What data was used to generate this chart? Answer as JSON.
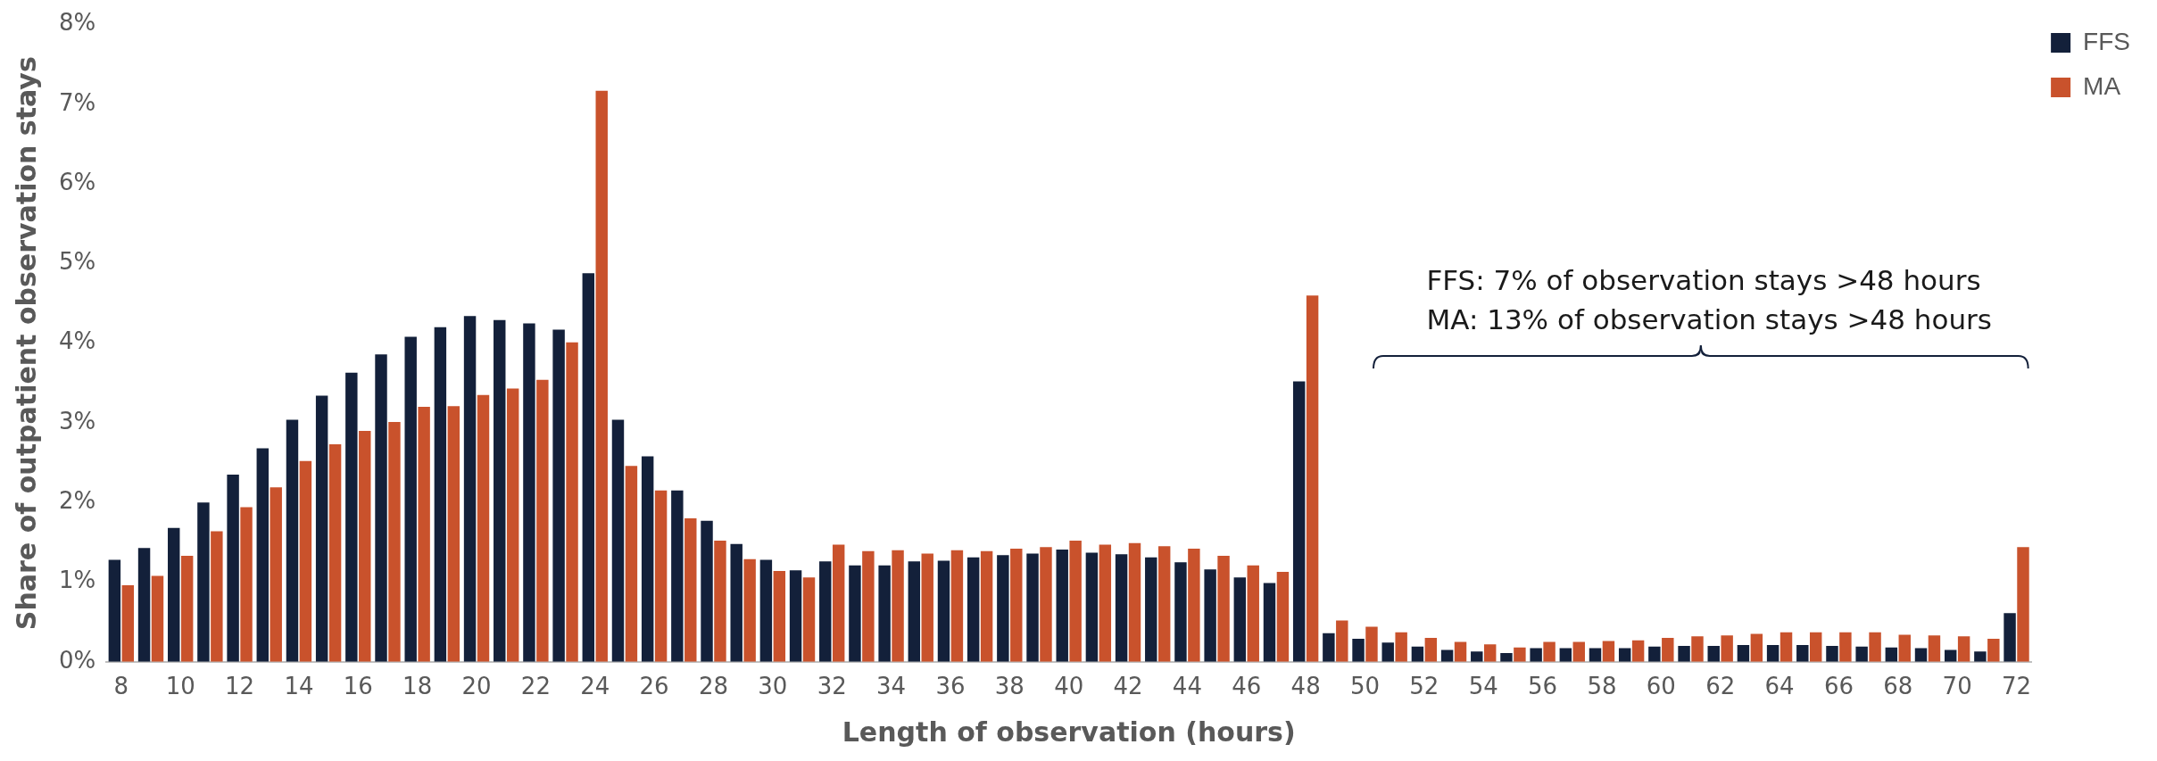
{
  "chart_data": {
    "type": "bar",
    "xlabel": "Length of observation (hours)",
    "ylabel": "Share of outpatient observation stays",
    "categories": [
      "8",
      null,
      "10",
      null,
      "12",
      null,
      "14",
      null,
      "16",
      null,
      "18",
      null,
      "20",
      null,
      "22",
      null,
      "24",
      null,
      "26",
      null,
      "28",
      null,
      "30",
      null,
      "32",
      null,
      "34",
      null,
      "36",
      null,
      "38",
      null,
      "40",
      null,
      "42",
      null,
      "44",
      null,
      "46",
      null,
      "48",
      null,
      "50",
      null,
      "52",
      null,
      "54",
      null,
      "56",
      null,
      "58",
      null,
      "60",
      null,
      "62",
      null,
      "64",
      null,
      "66",
      null,
      "68",
      null,
      "70",
      null,
      "72"
    ],
    "series": [
      {
        "name": "FFS",
        "color": "#13203a",
        "values": [
          1.28,
          1.43,
          1.68,
          2.0,
          2.35,
          2.68,
          3.04,
          3.34,
          3.63,
          3.86,
          4.08,
          4.2,
          4.34,
          4.29,
          4.25,
          4.17,
          4.88,
          3.04,
          2.58,
          2.15,
          1.77,
          1.48,
          1.28,
          1.15,
          1.26,
          1.21,
          1.21,
          1.26,
          1.27,
          1.31,
          1.34,
          1.36,
          1.41,
          1.37,
          1.35,
          1.31,
          1.25,
          1.16,
          1.06,
          0.99,
          3.52,
          0.36,
          0.29,
          0.24,
          0.19,
          0.15,
          0.13,
          0.11,
          0.17,
          0.17,
          0.17,
          0.17,
          0.19,
          0.2,
          0.2,
          0.21,
          0.21,
          0.21,
          0.2,
          0.19,
          0.18,
          0.17,
          0.15,
          0.13,
          0.61
        ]
      },
      {
        "name": "MA",
        "color": "#c9522c",
        "values": [
          0.96,
          1.08,
          1.33,
          1.64,
          1.94,
          2.19,
          2.52,
          2.73,
          2.9,
          3.01,
          3.2,
          3.21,
          3.35,
          3.43,
          3.54,
          4.01,
          7.17,
          2.46,
          2.15,
          1.8,
          1.52,
          1.29,
          1.14,
          1.06,
          1.47,
          1.39,
          1.4,
          1.36,
          1.4,
          1.39,
          1.42,
          1.44,
          1.52,
          1.47,
          1.49,
          1.45,
          1.42,
          1.33,
          1.21,
          1.13,
          4.6,
          0.52,
          0.44,
          0.37,
          0.3,
          0.25,
          0.22,
          0.18,
          0.25,
          0.25,
          0.26,
          0.27,
          0.3,
          0.32,
          0.33,
          0.35,
          0.37,
          0.37,
          0.37,
          0.37,
          0.34,
          0.33,
          0.32,
          0.29,
          1.44
        ]
      }
    ],
    "ylim": [
      0,
      8
    ],
    "yticks": [
      {
        "value": 0,
        "label": "0%"
      },
      {
        "value": 1,
        "label": "1%"
      },
      {
        "value": 2,
        "label": "2%"
      },
      {
        "value": 3,
        "label": "3%"
      },
      {
        "value": 4,
        "label": "4%"
      },
      {
        "value": 5,
        "label": "5%"
      },
      {
        "value": 6,
        "label": "6%"
      },
      {
        "value": 7,
        "label": "7%"
      },
      {
        "value": 8,
        "label": "8%"
      }
    ],
    "grid": false,
    "legend": "top right",
    "annotations": [
      "FFS: 7% of observation stays >48 hours",
      "MA: 13% of observation stays >48 hours"
    ]
  }
}
